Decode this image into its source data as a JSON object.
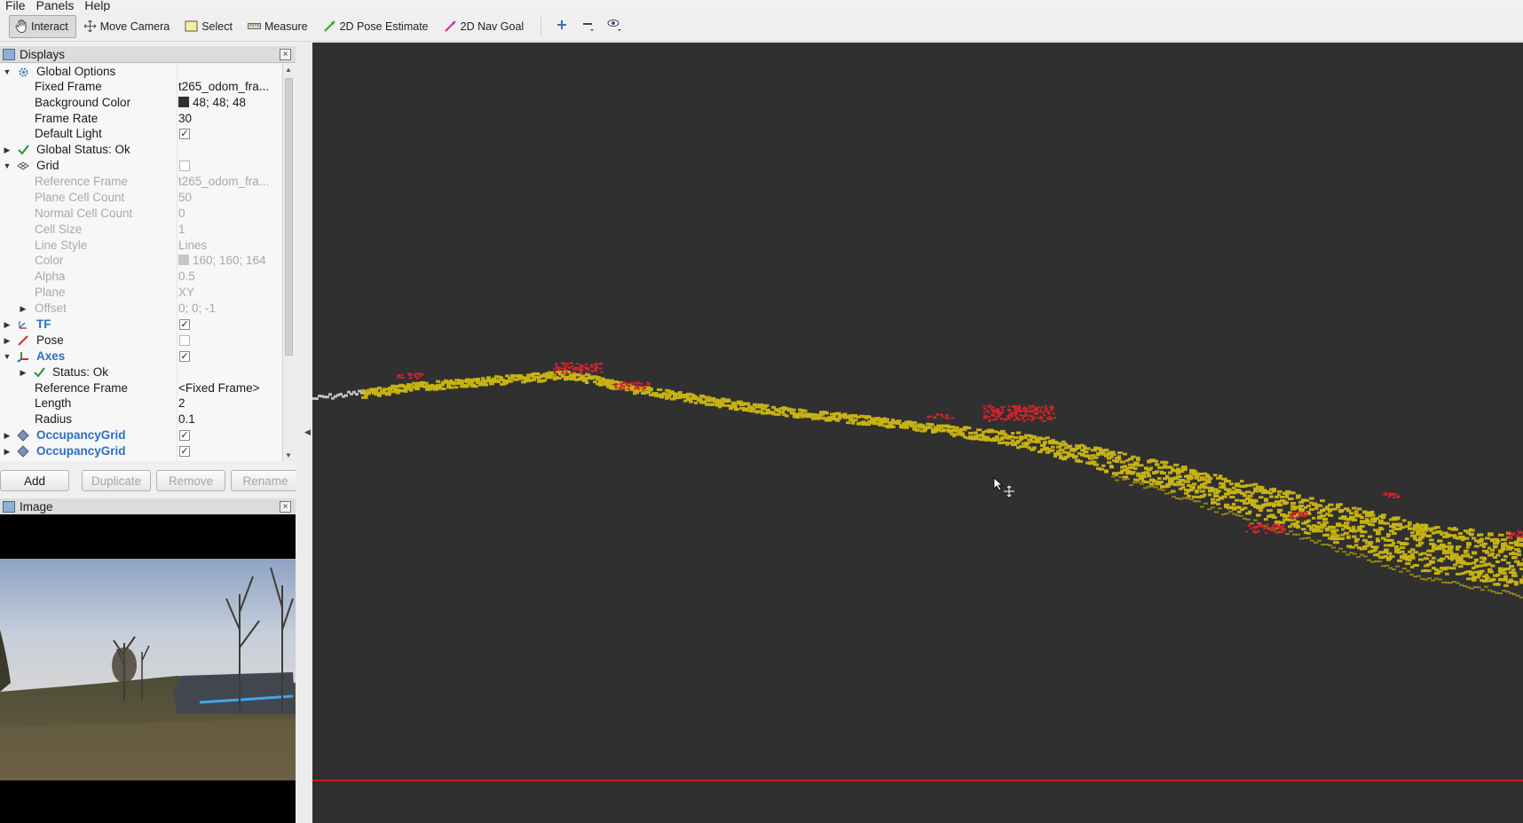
{
  "menubar": {
    "file": "File",
    "panels": "Panels",
    "help": "Help"
  },
  "toolbar": {
    "interact": "Interact",
    "move_camera": "Move Camera",
    "select": "Select",
    "measure": "Measure",
    "pose_estimate": "2D Pose Estimate",
    "nav_goal": "2D Nav Goal"
  },
  "displays_panel": {
    "title": "Displays",
    "close_glyph": "×"
  },
  "tree": {
    "global_options": "Global Options",
    "fixed_frame_label": "Fixed Frame",
    "fixed_frame_value": "t265_odom_fra...",
    "background_color_label": "Background Color",
    "background_color_value": "48; 48; 48",
    "background_color_hex": "#303030",
    "frame_rate_label": "Frame Rate",
    "frame_rate_value": "30",
    "default_light_label": "Default Light",
    "global_status": "Global Status: Ok",
    "grid": "Grid",
    "grid_reference_frame_label": "Reference Frame",
    "grid_reference_frame_value": "t265_odom_fra...",
    "plane_cell_count_label": "Plane Cell Count",
    "plane_cell_count_value": "50",
    "normal_cell_count_label": "Normal Cell Count",
    "normal_cell_count_value": "0",
    "cell_size_label": "Cell Size",
    "cell_size_value": "1",
    "line_style_label": "Line Style",
    "line_style_value": "Lines",
    "grid_color_label": "Color",
    "grid_color_value": "160; 160; 164",
    "grid_color_hex": "#a0a0a4",
    "alpha_label": "Alpha",
    "alpha_value": "0.5",
    "plane_label": "Plane",
    "plane_value": "XY",
    "offset_label": "Offset",
    "offset_value": "0; 0; -1",
    "tf": "TF",
    "pose": "Pose",
    "axes": "Axes",
    "axes_status": "Status: Ok",
    "axes_reference_frame_label": "Reference Frame",
    "axes_reference_frame_value": "<Fixed Frame>",
    "length_label": "Length",
    "length_value": "2",
    "radius_label": "Radius",
    "radius_value": "0.1",
    "occupancy_grid_1": "OccupancyGrid",
    "occupancy_grid_2": "OccupancyGrid",
    "check_glyph": "✓"
  },
  "buttons": {
    "add": "Add",
    "duplicate": "Duplicate",
    "remove": "Remove",
    "rename": "Rename"
  },
  "image_panel": {
    "title": "Image",
    "close_glyph": "×"
  },
  "colors": {
    "viewport_background": "#303030",
    "occupied_cells": "#c9b412",
    "obstacles": "#d4242c",
    "selection_box": "#d0161a"
  }
}
